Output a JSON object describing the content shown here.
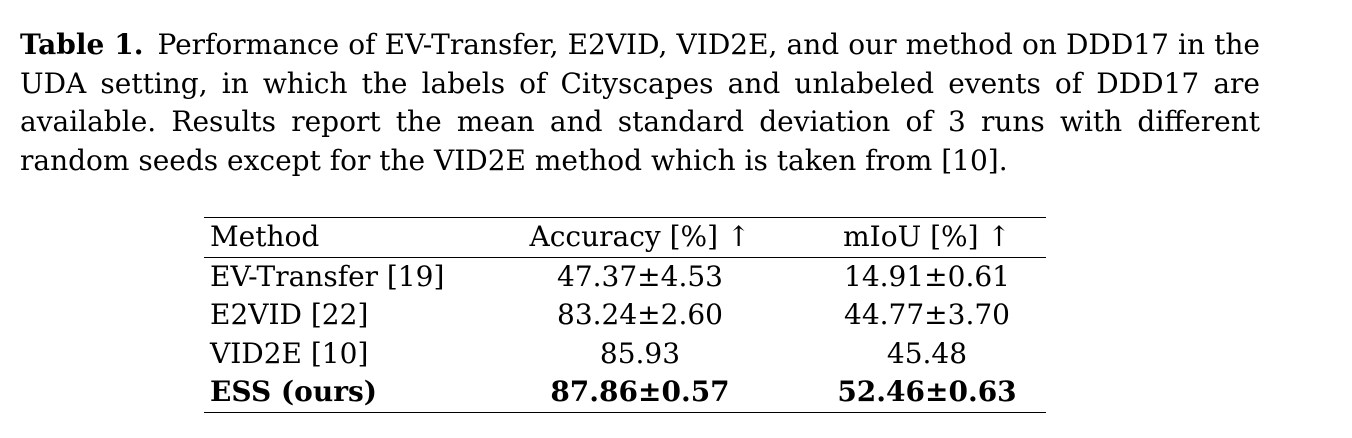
{
  "caption": {
    "label": "Table 1.",
    "text": "Performance of EV-Transfer, E2VID, VID2E, and our method on DDD17 in the UDA setting, in which the labels of Cityscapes and unlabeled events of DDD17 are available. Results report the mean and standard deviation of 3 runs with different random seeds except for the VID2E method which is taken from [10]."
  },
  "table": {
    "headers": [
      "Method",
      "Accuracy [%] ↑",
      "mIoU [%] ↑"
    ],
    "rows": [
      {
        "method": "EV-Transfer [19]",
        "accuracy": "47.37±4.53",
        "miou": "14.91±0.61"
      },
      {
        "method": "E2VID [22]",
        "accuracy": "83.24±2.60",
        "miou": "44.77±3.70"
      },
      {
        "method": "VID2E [10]",
        "accuracy": "85.93",
        "miou": "45.48"
      },
      {
        "method": "ESS (ours)",
        "accuracy": "87.86±0.57",
        "miou": "52.46±0.63"
      }
    ]
  }
}
